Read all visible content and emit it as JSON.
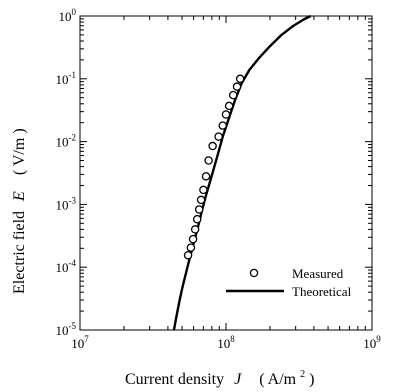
{
  "chart_data": {
    "type": "scatter",
    "title": "",
    "xlabel": {
      "name": "Current density",
      "symbol": "J",
      "unit_open": "( A/m",
      "unit_exp": "2",
      "unit_close": " )"
    },
    "ylabel": {
      "name": "Electric field",
      "symbol": "E",
      "unit": "( V/m )"
    },
    "xscale": "log",
    "yscale": "log",
    "xlim": [
      10000000,
      1000000000
    ],
    "ylim": [
      1e-05,
      1
    ],
    "grid": false,
    "legend_position": "bottom-right",
    "x_ticks": [
      {
        "value": 10000000,
        "base": "10",
        "exp": "7"
      },
      {
        "value": 100000000,
        "base": "10",
        "exp": "8"
      },
      {
        "value": 1000000000,
        "base": "10",
        "exp": "9"
      }
    ],
    "y_ticks": [
      {
        "value": 1e-05,
        "base": "10",
        "exp": "-5"
      },
      {
        "value": 0.0001,
        "base": "10",
        "exp": "-4"
      },
      {
        "value": 0.001,
        "base": "10",
        "exp": "-3"
      },
      {
        "value": 0.01,
        "base": "10",
        "exp": "-2"
      },
      {
        "value": 0.1,
        "base": "10",
        "exp": "-1"
      },
      {
        "value": 1,
        "base": "10",
        "exp": "0"
      }
    ],
    "series": [
      {
        "name": "Measured",
        "type": "scatter",
        "marker": "open-circle",
        "color": "#000000",
        "x": [
          55000000,
          57500000,
          59500000,
          61500000,
          63500000,
          65500000,
          67500000,
          70000000,
          73000000,
          76000000,
          81000000,
          89000000,
          95000000,
          100000000,
          105000000,
          112000000,
          119000000,
          125000000
        ],
        "y": [
          0.000155,
          0.000205,
          0.00028,
          0.0004,
          0.00058,
          0.00083,
          0.00118,
          0.0017,
          0.0028,
          0.005,
          0.0085,
          0.012,
          0.018,
          0.027,
          0.037,
          0.055,
          0.075,
          0.1
        ]
      },
      {
        "name": "Theoretical",
        "type": "line",
        "color": "#000000",
        "x": [
          44000000,
          46000000,
          48000000,
          50000000,
          53000000,
          56000000,
          60000000,
          64000000,
          68000000,
          73000000,
          80000000,
          88000000,
          95000000,
          105000000,
          115000000,
          128000000,
          145000000,
          170000000,
          200000000,
          240000000,
          290000000,
          340000000,
          380000000
        ],
        "y": [
          1e-05,
          1.75e-05,
          2.9e-05,
          4.5e-05,
          7.8e-05,
          0.00013,
          0.00024,
          0.00042,
          0.00075,
          0.0014,
          0.0029,
          0.0063,
          0.012,
          0.024,
          0.045,
          0.085,
          0.14,
          0.22,
          0.33,
          0.5,
          0.7,
          0.88,
          1
        ]
      }
    ]
  }
}
